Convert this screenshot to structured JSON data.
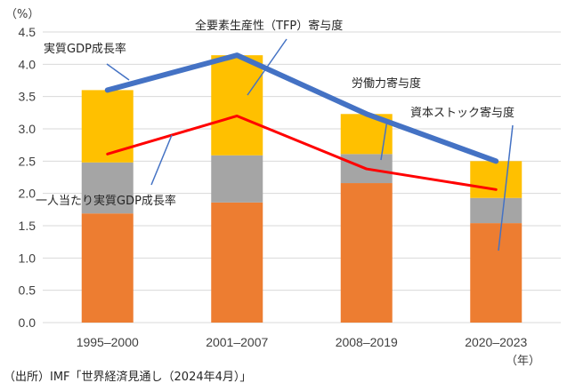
{
  "chart_data": {
    "type": "bar",
    "stacked": true,
    "title": "",
    "y_unit_label": "（%）",
    "x_unit_label": "（年）",
    "xlabel": "",
    "ylabel": "",
    "ylim": [
      0,
      4.5
    ],
    "y_ticks": [
      0.0,
      0.5,
      1.0,
      1.5,
      2.0,
      2.5,
      3.0,
      3.5,
      4.0,
      4.5
    ],
    "y_tick_labels": [
      "0.0",
      "0.5",
      "1.0",
      "1.5",
      "2.0",
      "2.5",
      "3.0",
      "3.5",
      "4.0",
      "4.5"
    ],
    "grid": true,
    "categories": [
      "1995–2000",
      "2001–2007",
      "2008–2019",
      "2020–2023"
    ],
    "series": [
      {
        "name": "資本ストック寄与度",
        "kind": "bar",
        "color": "#ED7D31",
        "values": [
          1.69,
          1.86,
          2.16,
          1.54
        ]
      },
      {
        "name": "労働力寄与度",
        "kind": "bar",
        "color": "#A5A5A5",
        "values": [
          0.79,
          0.73,
          0.45,
          0.39
        ]
      },
      {
        "name": "全要素生産性（TFP）寄与度",
        "kind": "bar",
        "color": "#FFC000",
        "values": [
          1.12,
          1.55,
          0.62,
          0.57
        ]
      },
      {
        "name": "実質GDP成長率",
        "kind": "line",
        "color": "#4472C4",
        "values": [
          3.6,
          4.14,
          3.23,
          2.5
        ]
      },
      {
        "name": "一人当たり実質GDP成長率",
        "kind": "line",
        "color": "#FF0000",
        "values": [
          2.61,
          3.2,
          2.38,
          2.06
        ]
      }
    ],
    "annotations": [
      {
        "text": "実質GDP成長率",
        "series": "実質GDP成長率"
      },
      {
        "text": "全要素生産性（TFP）寄与度",
        "series": "全要素生産性（TFP）寄与度"
      },
      {
        "text": "労働力寄与度",
        "series": "労働力寄与度"
      },
      {
        "text": "資本ストック寄与度",
        "series": "資本ストック寄与度"
      },
      {
        "text": "一人当たり実質GDP成長率",
        "series": "一人当たり実質GDP成長率"
      }
    ],
    "legend": "none (callout labels)",
    "source": "（出所）IMF「世界経済見通し（2024年4月）」"
  }
}
